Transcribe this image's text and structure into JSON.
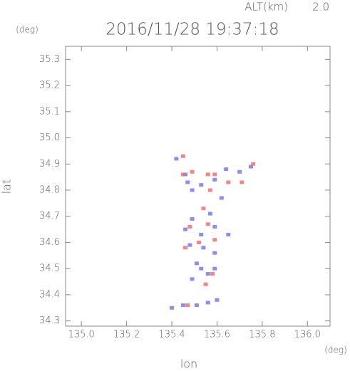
{
  "chart_data": {
    "type": "scatter",
    "title": "2016/11/28 19:37:18",
    "altitude_label": "ALT(km)",
    "altitude_value": "2.0",
    "y_unit": "(deg)",
    "x_unit": "(deg)",
    "xlabel": "lon",
    "ylabel": "lat",
    "xlim": [
      134.93,
      136.1
    ],
    "ylim": [
      34.28,
      35.35
    ],
    "xticks": [
      {
        "value": 135.0,
        "label": "135.0"
      },
      {
        "value": 135.2,
        "label": "135.2"
      },
      {
        "value": 135.4,
        "label": "135.4"
      },
      {
        "value": 135.6,
        "label": "135.6"
      },
      {
        "value": 135.8,
        "label": "135.8"
      },
      {
        "value": 136.0,
        "label": "136.0"
      }
    ],
    "yticks": [
      {
        "value": 34.3,
        "label": "34.3"
      },
      {
        "value": 34.4,
        "label": "34.4"
      },
      {
        "value": 34.5,
        "label": "34.5"
      },
      {
        "value": 34.6,
        "label": "34.6"
      },
      {
        "value": 34.7,
        "label": "34.7"
      },
      {
        "value": 34.8,
        "label": "34.8"
      },
      {
        "value": 34.9,
        "label": "34.9"
      },
      {
        "value": 35.0,
        "label": "35.0"
      },
      {
        "value": 35.1,
        "label": "35.1"
      },
      {
        "value": 35.2,
        "label": "35.2"
      },
      {
        "value": 35.3,
        "label": "35.3"
      }
    ],
    "series": [
      {
        "color": "#7878ee",
        "x": [
          135.42,
          135.46,
          135.47,
          135.49,
          135.53,
          135.59,
          135.64,
          135.7,
          135.75,
          135.62,
          135.57,
          135.49,
          135.46,
          135.53,
          135.59,
          135.65,
          135.54,
          135.48,
          135.59,
          135.51,
          135.53,
          135.56,
          135.59,
          135.49,
          135.45,
          135.51,
          135.56,
          135.6,
          135.4
        ],
        "values": [
          34.92,
          34.86,
          34.83,
          34.8,
          34.82,
          34.84,
          34.88,
          34.87,
          34.89,
          34.77,
          34.71,
          34.69,
          34.65,
          34.63,
          34.66,
          34.63,
          34.58,
          34.59,
          34.56,
          34.52,
          34.5,
          34.48,
          34.5,
          34.46,
          34.36,
          34.36,
          34.37,
          34.38,
          34.35
        ]
      },
      {
        "color": "#f07070",
        "x": [
          135.45,
          135.45,
          135.49,
          135.57,
          135.59,
          135.65,
          135.71,
          135.76,
          135.48,
          135.56,
          135.52,
          135.59,
          135.46,
          135.54,
          135.58,
          135.55,
          135.47,
          135.56
        ],
        "values": [
          34.93,
          34.86,
          34.87,
          34.8,
          34.86,
          34.83,
          34.83,
          34.9,
          34.66,
          34.67,
          34.6,
          34.61,
          34.58,
          34.73,
          34.48,
          34.44,
          34.36,
          34.86
        ]
      }
    ]
  }
}
